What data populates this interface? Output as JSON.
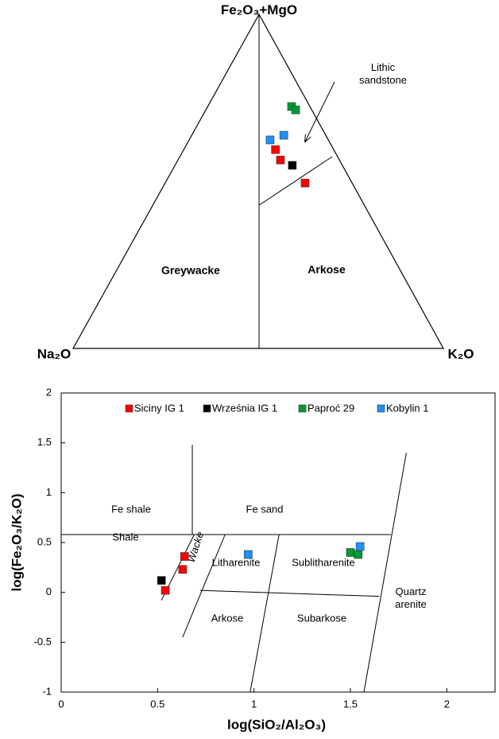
{
  "chart_data": [
    {
      "type": "ternary",
      "vertex_labels": {
        "top": "Fe₂O₃+MgO",
        "left": "Na₂O",
        "right": "K₂O"
      },
      "region_labels": [
        "Greywacke",
        "Arkose"
      ],
      "annotation": "Lithic sandstone",
      "series": [
        {
          "color": "#ff0000",
          "values": [
            [
              59.5,
              15.6,
              24.9
            ],
            [
              56.4,
              15.8,
              27.8
            ],
            [
              49.5,
              12.6,
              37.9
            ]
          ]
        },
        {
          "color": "#000000",
          "values": [
            [
              54.8,
              13.4,
              31.8
            ]
          ]
        },
        {
          "color": "#009933",
          "values": [
            [
              72.4,
              4.8,
              22.8
            ],
            [
              71.4,
              4.2,
              24.4
            ]
          ]
        },
        {
          "color": "#1e90ff",
          "values": [
            [
              62.4,
              15.6,
              22.0
            ],
            [
              63.8,
              11.2,
              25.0
            ]
          ]
        }
      ]
    },
    {
      "type": "scatter",
      "x_label": "log(SiO₂/Al₂O₃)",
      "y_label": "log(Fe₂O₃/K₂O)",
      "xlim": [
        0,
        2.25
      ],
      "xticks": [
        0,
        0.5,
        1,
        1.5,
        2
      ],
      "ylim": [
        -1,
        2
      ],
      "yticks": [
        -1,
        -0.5,
        0,
        0.5,
        1,
        1.5,
        2
      ],
      "region_labels": [
        "Fe shale",
        "Fe sand",
        "Shale",
        "Wacke",
        "Litharenite",
        "Sublitharenite",
        "Arkose",
        "Subarkose",
        "Quartz arenite"
      ],
      "series": [
        {
          "name": "Siciny IG 1",
          "color": "#ff0000",
          "x": [
            0.64,
            0.63,
            0.54
          ],
          "values": [
            0.36,
            0.23,
            0.02
          ]
        },
        {
          "name": "Września IG 1",
          "color": "#000000",
          "x": [
            0.52
          ],
          "values": [
            0.12
          ]
        },
        {
          "name": "Paproć 29",
          "color": "#009933",
          "x": [
            1.5,
            1.54
          ],
          "values": [
            0.4,
            0.38
          ]
        },
        {
          "name": "Kobylin 1",
          "color": "#1e90ff",
          "x": [
            0.97,
            1.55
          ],
          "values": [
            0.38,
            0.46
          ]
        }
      ]
    }
  ]
}
